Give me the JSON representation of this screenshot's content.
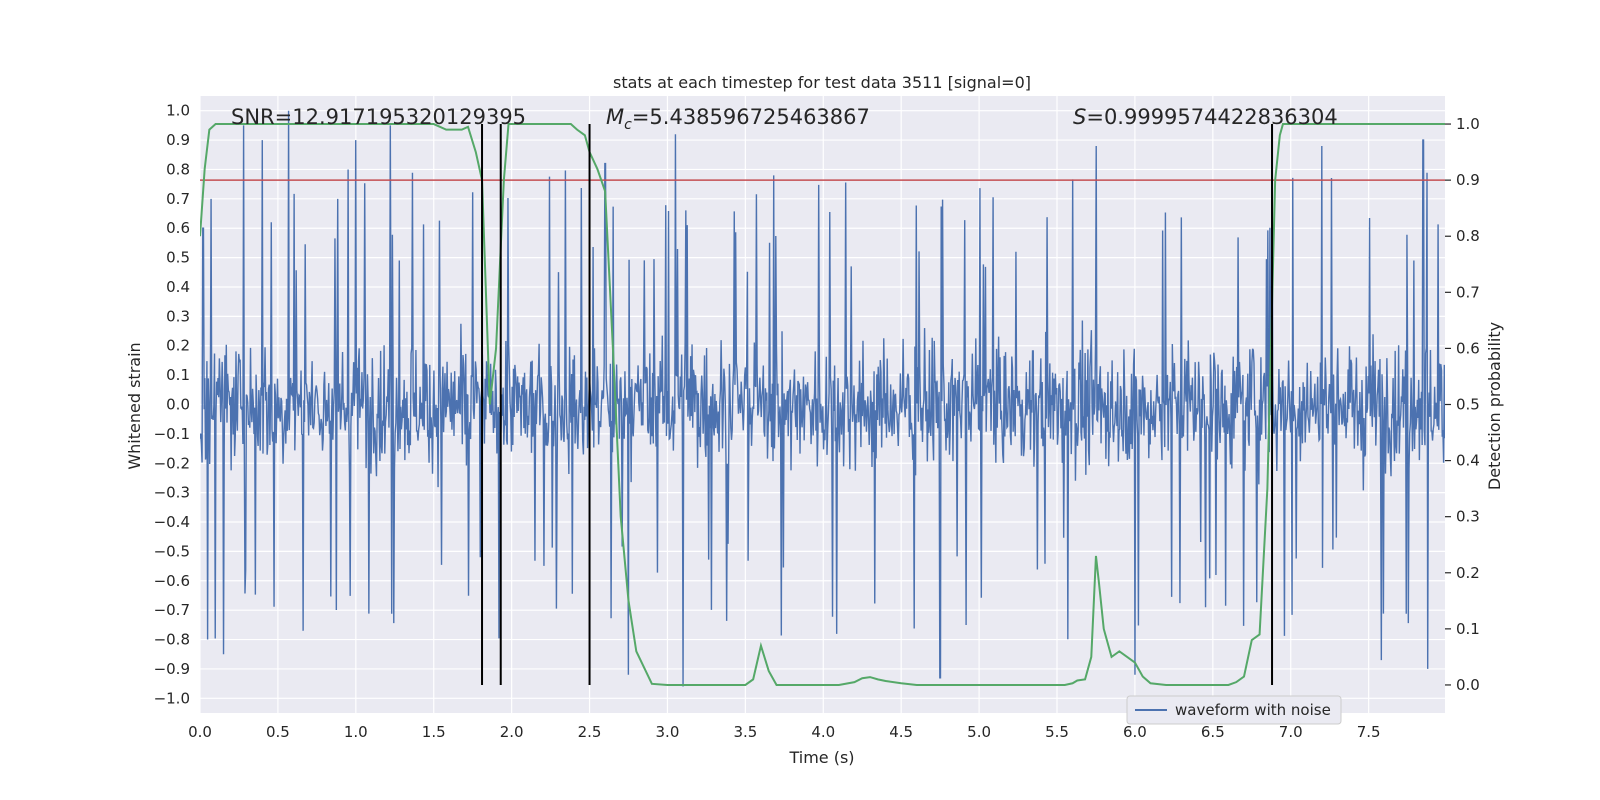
{
  "chart_data": {
    "type": "line",
    "title": "stats at each timestep for test data 3511 [signal=0]",
    "xlabel": "Time (s)",
    "ylabel_left": "Whitened strain",
    "ylabel_right": "Detection probability",
    "xlim": [
      0.0,
      7.99
    ],
    "ylim_left": [
      -1.05,
      1.05
    ],
    "ylim_right": [
      -0.05,
      1.05
    ],
    "x_ticks": [
      0.0,
      0.5,
      1.0,
      1.5,
      2.0,
      2.5,
      3.0,
      3.5,
      4.0,
      4.5,
      5.0,
      5.5,
      6.0,
      6.5,
      7.0,
      7.5
    ],
    "x_tick_labels": [
      "0.0",
      "0.5",
      "1.0",
      "1.5",
      "2.0",
      "2.5",
      "3.0",
      "3.5",
      "4.0",
      "4.5",
      "5.0",
      "5.5",
      "6.0",
      "6.5",
      "7.0",
      "7.5"
    ],
    "y_left_ticks": [
      1.0,
      0.9,
      0.8,
      0.7,
      0.6,
      0.5,
      0.4,
      0.3,
      0.2,
      0.1,
      0.0,
      -0.1,
      -0.2,
      -0.3,
      -0.4,
      -0.5,
      -0.6,
      -0.7,
      -0.8,
      -0.9,
      -1.0
    ],
    "y_left_tick_labels": [
      "1.0",
      "0.9",
      "0.8",
      "0.7",
      "0.6",
      "0.5",
      "0.4",
      "0.3",
      "0.2",
      "0.1",
      "0.0",
      "−0.1",
      "−0.2",
      "−0.3",
      "−0.4",
      "−0.5",
      "−0.6",
      "−0.7",
      "−0.8",
      "−0.9",
      "−1.0"
    ],
    "y_right_ticks": [
      1.0,
      0.9,
      0.8,
      0.7,
      0.6,
      0.5,
      0.4,
      0.3,
      0.2,
      0.1,
      0.0
    ],
    "y_right_tick_labels": [
      "1.0",
      "0.9",
      "0.8",
      "0.7",
      "0.6",
      "0.5",
      "0.4",
      "0.3",
      "0.2",
      "0.1",
      "0.0"
    ],
    "annotations": {
      "snr": "SNR=12.917195320129395",
      "mc_symbol": "M",
      "mc_subscript": "c",
      "mc_value": "=5.438596725463867",
      "s_symbol": "S",
      "s_value": "=0.9999574422836304"
    },
    "threshold": {
      "axis": "right",
      "value": 0.9,
      "color": "#c44e52"
    },
    "vertical_markers": {
      "color": "#000000",
      "lines": [
        {
          "x": 1.81,
          "y_top": 1.0,
          "y_bottom": 0.0
        },
        {
          "x": 1.93,
          "y_top": 1.0,
          "y_bottom": 0.0
        },
        {
          "x": 2.5,
          "y_top": 1.0,
          "y_bottom": 0.0
        },
        {
          "x": 6.88,
          "y_top": 1.0,
          "y_bottom": 0.0
        }
      ]
    },
    "series": [
      {
        "name": "waveform with noise",
        "axis": "left",
        "color": "#4c72b0",
        "kind": "whitened strain noise, dense band approx ±0.4 with spikes reaching ±1.0",
        "envelope_peaks": [
          {
            "x": 0.02,
            "v": 0.6
          },
          {
            "x": 0.05,
            "v": -0.8
          },
          {
            "x": 0.07,
            "v": 0.7
          },
          {
            "x": 0.15,
            "v": -0.85
          },
          {
            "x": 0.28,
            "v": 0.95
          },
          {
            "x": 0.4,
            "v": 0.9
          },
          {
            "x": 0.57,
            "v": 1.0
          },
          {
            "x": 0.95,
            "v": 0.8
          },
          {
            "x": 1.0,
            "v": 0.9
          },
          {
            "x": 1.22,
            "v": 0.95
          },
          {
            "x": 1.8,
            "v": -0.52
          },
          {
            "x": 2.6,
            "v": 0.82
          },
          {
            "x": 2.75,
            "v": -0.92
          },
          {
            "x": 3.05,
            "v": 0.92
          },
          {
            "x": 3.1,
            "v": -0.96
          },
          {
            "x": 4.75,
            "v": -0.93
          },
          {
            "x": 5.75,
            "v": 0.88
          },
          {
            "x": 6.0,
            "v": -0.92
          },
          {
            "x": 6.88,
            "v": 0.95
          },
          {
            "x": 7.2,
            "v": 0.88
          },
          {
            "x": 7.58,
            "v": -0.87
          },
          {
            "x": 7.85,
            "v": 0.9
          },
          {
            "x": 7.88,
            "v": -0.9
          }
        ]
      },
      {
        "name": "detection probability",
        "axis": "right",
        "color": "#55a868",
        "x": [
          0.0,
          0.03,
          0.06,
          0.1,
          0.15,
          0.3,
          0.6,
          1.0,
          1.5,
          1.58,
          1.63,
          1.68,
          1.72,
          1.77,
          1.81,
          1.86,
          1.9,
          1.95,
          1.98,
          2.0,
          2.05,
          2.2,
          2.3,
          2.38,
          2.42,
          2.47,
          2.5,
          2.55,
          2.6,
          2.65,
          2.7,
          2.75,
          2.8,
          2.9,
          3.0,
          3.2,
          3.4,
          3.5,
          3.55,
          3.6,
          3.65,
          3.7,
          3.8,
          4.0,
          4.1,
          4.2,
          4.25,
          4.3,
          4.35,
          4.4,
          4.5,
          4.6,
          4.7,
          4.8,
          5.0,
          5.2,
          5.3,
          5.4,
          5.5,
          5.55,
          5.6,
          5.63,
          5.68,
          5.72,
          5.75,
          5.77,
          5.8,
          5.85,
          5.9,
          5.95,
          6.0,
          6.05,
          6.1,
          6.2,
          6.3,
          6.4,
          6.5,
          6.6,
          6.65,
          6.7,
          6.75,
          6.8,
          6.85,
          6.9,
          6.93,
          6.95,
          7.0,
          7.5,
          7.99
        ],
        "values": [
          0.8,
          0.92,
          0.99,
          1.0,
          1.0,
          1.0,
          1.0,
          1.0,
          1.0,
          0.99,
          0.99,
          0.99,
          0.995,
          0.95,
          0.9,
          0.5,
          0.6,
          0.9,
          1.0,
          1.0,
          1.0,
          1.0,
          1.0,
          1.0,
          0.99,
          0.98,
          0.95,
          0.92,
          0.88,
          0.6,
          0.3,
          0.15,
          0.06,
          0.002,
          0.0,
          0.0,
          0.0,
          0.0,
          0.01,
          0.07,
          0.025,
          0.0,
          0.0,
          0.0,
          0.0,
          0.005,
          0.012,
          0.014,
          0.01,
          0.007,
          0.003,
          0.0,
          0.0,
          0.0,
          0.0,
          0.0,
          0.0,
          0.0,
          0.0,
          0.0,
          0.003,
          0.008,
          0.01,
          0.05,
          0.23,
          0.18,
          0.1,
          0.05,
          0.06,
          0.05,
          0.04,
          0.015,
          0.003,
          0.0,
          0.0,
          0.0,
          0.0,
          0.0,
          0.005,
          0.015,
          0.08,
          0.09,
          0.35,
          0.9,
          0.98,
          1.0,
          1.0,
          1.0,
          1.0
        ]
      }
    ],
    "legend": {
      "position": "bottom-right",
      "entries": [
        {
          "label": "waveform with noise",
          "color": "#4c72b0"
        }
      ]
    },
    "grid": true,
    "background": "#eaeaf2"
  }
}
